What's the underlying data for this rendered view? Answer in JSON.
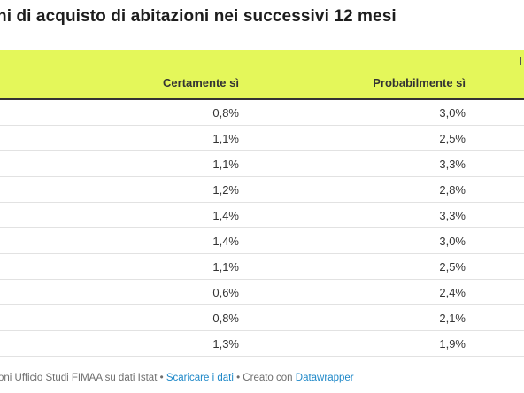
{
  "title": "ni di acquisto di abitazioni nei successivi 12 mesi",
  "table": {
    "columns": [
      "Certamente sì",
      "Probabilmente sì"
    ],
    "rows": [
      [
        "0,8%",
        "3,0%"
      ],
      [
        "1,1%",
        "2,5%"
      ],
      [
        "1,1%",
        "3,3%"
      ],
      [
        "1,2%",
        "2,8%"
      ],
      [
        "1,4%",
        "3,3%"
      ],
      [
        "1,4%",
        "3,0%"
      ],
      [
        "1,1%",
        "2,5%"
      ],
      [
        "0,6%",
        "2,4%"
      ],
      [
        "0,8%",
        "2,1%"
      ],
      [
        "1,3%",
        "1,9%"
      ]
    ]
  },
  "footer": {
    "source": "oni Ufficio Studi FIMAA su dati Istat",
    "sep1": " • ",
    "download_link": "Scaricare i dati",
    "sep2": " • Creato con ",
    "tool_link": "Datawrapper"
  },
  "colors": {
    "header_bg": "#e4f75a",
    "link": "#1e88c8"
  }
}
